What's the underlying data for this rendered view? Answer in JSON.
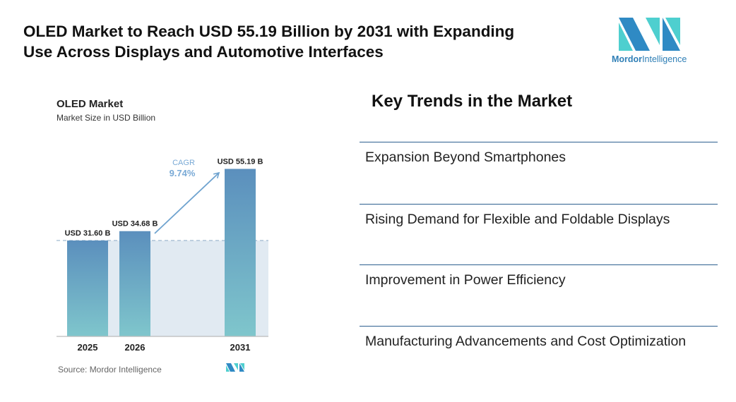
{
  "header": {
    "title_line1": "OLED Market to Reach USD 55.19 Billion by 2031 with Expanding",
    "title_line2": "Use Across Displays and Automotive Interfaces"
  },
  "logo": {
    "word1": "Mordor",
    "word2": "Intelligence",
    "colors": [
      "#2f8ac4",
      "#4ecfcf"
    ]
  },
  "chart_data": {
    "type": "bar",
    "title": "OLED Market",
    "subtitle": "Market Size in USD Billion",
    "categories": [
      "2025",
      "2026",
      "2031"
    ],
    "values": [
      31.6,
      34.68,
      55.19
    ],
    "data_labels": [
      "USD 31.60 B",
      "USD 34.68 B",
      "USD 55.19 B"
    ],
    "annotation": {
      "label": "CAGR",
      "value": "9.74%"
    },
    "source": "Source: Mordor Intelligence",
    "ylim": [
      0,
      58
    ],
    "colors": {
      "bar_top": "#5b8fbd",
      "bar_bottom": "#7fc6cc",
      "band": "#e1eaf2",
      "accent": "#6fa3cf"
    }
  },
  "trends": {
    "title": "Key Trends in the Market",
    "items": [
      "Expansion Beyond Smartphones",
      "Rising Demand for Flexible and Foldable Displays",
      "Improvement in Power Efficiency",
      "Manufacturing Advancements and Cost Optimization"
    ]
  }
}
